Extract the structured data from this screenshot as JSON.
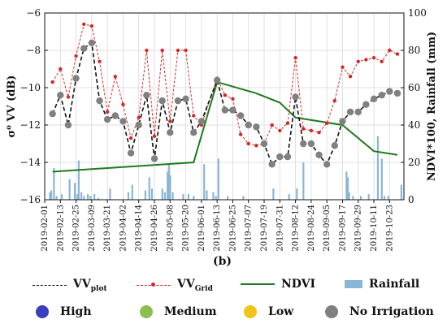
{
  "chart_data": {
    "type": "line",
    "panel_label": "(b)",
    "ylabel_left": "σ⁰ VV (dB)",
    "ylabel_right": "NDVI*100, Rainfall (mm)",
    "ylim_left": [
      -16,
      -6
    ],
    "yticks_left": [
      -16,
      -14,
      -12,
      -10,
      -8,
      -6
    ],
    "ylim_right": [
      0,
      100
    ],
    "yticks_right": [
      0,
      20,
      40,
      60,
      80,
      100
    ],
    "x_range": [
      "2019-02-01",
      "2019-11-03"
    ],
    "x_tick_labels": [
      "2019-02-01",
      "2019-02-13",
      "2019-02-25",
      "2019-03-09",
      "2019-03-21",
      "2019-04-02",
      "2019-04-14",
      "2019-04-26",
      "2019-05-08",
      "2019-05-20",
      "2019-06-01",
      "2019-06-13",
      "2019-06-25",
      "2019-07-07",
      "2019-07-19",
      "2019-07-31",
      "2019-08-12",
      "2019-08-24",
      "2019-09-05",
      "2019-09-17",
      "2019-09-29",
      "2019-10-11",
      "2019-10-23"
    ],
    "grid": true,
    "series": [
      {
        "name": "VV_plot",
        "axis": "left",
        "style": "dashed-black",
        "x": [
          "2019-02-07",
          "2019-02-13",
          "2019-02-19",
          "2019-02-25",
          "2019-03-03",
          "2019-03-09",
          "2019-03-15",
          "2019-03-21",
          "2019-03-27",
          "2019-04-02",
          "2019-04-08",
          "2019-04-14",
          "2019-04-20",
          "2019-04-26",
          "2019-05-02",
          "2019-05-08",
          "2019-05-14",
          "2019-05-20",
          "2019-05-26",
          "2019-06-01",
          "2019-06-13",
          "2019-06-19",
          "2019-06-25",
          "2019-07-01",
          "2019-07-07",
          "2019-07-13",
          "2019-07-19",
          "2019-07-25",
          "2019-07-31",
          "2019-08-06",
          "2019-08-12",
          "2019-08-18",
          "2019-08-24",
          "2019-08-30",
          "2019-09-05",
          "2019-09-11",
          "2019-09-17",
          "2019-09-23",
          "2019-09-29",
          "2019-10-05",
          "2019-10-11",
          "2019-10-17",
          "2019-10-23",
          "2019-10-29"
        ],
        "y": [
          -11.4,
          -10.4,
          -12.0,
          -9.5,
          -7.9,
          -7.6,
          -10.7,
          -11.7,
          -11.5,
          -11.8,
          -13.5,
          -12.0,
          -10.4,
          -13.8,
          -10.7,
          -12.4,
          -10.7,
          -10.6,
          -12.4,
          -11.8,
          -9.6,
          -11.2,
          -11.2,
          -11.5,
          -12.0,
          -12.1,
          -13.0,
          -14.1,
          -13.7,
          -13.7,
          -10.5,
          -13.0,
          -13.0,
          -13.6,
          -14.1,
          -13.1,
          -11.8,
          -11.3,
          -11.3,
          -10.9,
          -10.6,
          -10.4,
          -10.2,
          -10.3
        ]
      },
      {
        "name": "VV_Grid",
        "axis": "left",
        "style": "dashed-red-markers",
        "x": [
          "2019-02-07",
          "2019-02-13",
          "2019-02-19",
          "2019-02-25",
          "2019-03-03",
          "2019-03-09",
          "2019-03-15",
          "2019-03-21",
          "2019-03-27",
          "2019-04-02",
          "2019-04-08",
          "2019-04-14",
          "2019-04-20",
          "2019-04-26",
          "2019-05-02",
          "2019-05-08",
          "2019-05-14",
          "2019-05-20",
          "2019-05-26",
          "2019-06-01",
          "2019-06-13",
          "2019-06-19",
          "2019-06-25",
          "2019-07-01",
          "2019-07-07",
          "2019-07-13",
          "2019-07-19",
          "2019-07-25",
          "2019-07-31",
          "2019-08-06",
          "2019-08-12",
          "2019-08-18",
          "2019-08-24",
          "2019-08-30",
          "2019-09-05",
          "2019-09-11",
          "2019-09-17",
          "2019-09-23",
          "2019-09-29",
          "2019-10-05",
          "2019-10-11",
          "2019-10-17",
          "2019-10-23",
          "2019-10-29"
        ],
        "y": [
          -9.7,
          -9.0,
          -10.5,
          -8.3,
          -6.6,
          -6.7,
          -8.6,
          -11.3,
          -9.4,
          -10.9,
          -12.7,
          -11.6,
          -8.0,
          -12.6,
          -8.0,
          -11.8,
          -8.0,
          -8.0,
          -11.5,
          -12.0,
          -9.5,
          -10.4,
          -10.6,
          -12.5,
          -13.0,
          -13.1,
          -13.0,
          -12.0,
          -12.3,
          -11.9,
          -8.4,
          -12.2,
          -12.3,
          -12.4,
          -11.9,
          -10.7,
          -8.9,
          -9.4,
          -8.6,
          -8.5,
          -8.4,
          -8.6,
          -8.0,
          -8.2
        ]
      },
      {
        "name": "NDVI",
        "axis": "right",
        "style": "solid-green",
        "x": [
          "2019-02-07",
          "2019-05-26",
          "2019-06-13",
          "2019-07-13",
          "2019-07-31",
          "2019-08-12",
          "2019-09-17",
          "2019-10-11",
          "2019-10-29"
        ],
        "y": [
          15,
          20,
          63,
          57,
          52,
          44,
          40,
          26,
          24
        ]
      },
      {
        "name": "Rainfall",
        "axis": "right",
        "style": "bars-lightblue",
        "x": [
          "2019-02-05",
          "2019-02-06",
          "2019-02-08",
          "2019-02-10",
          "2019-02-14",
          "2019-02-20",
          "2019-02-24",
          "2019-02-26",
          "2019-02-27",
          "2019-03-01",
          "2019-03-03",
          "2019-03-06",
          "2019-03-08",
          "2019-03-11",
          "2019-03-14",
          "2019-03-23",
          "2019-04-06",
          "2019-04-09",
          "2019-04-19",
          "2019-04-22",
          "2019-04-24",
          "2019-05-02",
          "2019-05-04",
          "2019-05-06",
          "2019-05-07",
          "2019-05-08",
          "2019-05-10",
          "2019-05-18",
          "2019-05-22",
          "2019-05-26",
          "2019-06-03",
          "2019-06-05",
          "2019-06-10",
          "2019-06-12",
          "2019-06-14",
          "2019-06-21",
          "2019-07-03",
          "2019-07-26",
          "2019-08-07",
          "2019-08-13",
          "2019-08-18",
          "2019-09-20",
          "2019-09-21",
          "2019-09-22",
          "2019-09-25",
          "2019-10-01",
          "2019-10-07",
          "2019-10-14",
          "2019-10-17",
          "2019-10-19",
          "2019-10-22",
          "2019-11-01"
        ],
        "y": [
          4,
          5,
          17,
          2,
          3,
          11,
          9,
          3,
          21,
          4,
          2,
          3,
          2,
          3,
          1,
          6,
          4,
          8,
          5,
          12,
          6,
          6,
          4,
          15,
          19,
          13,
          4,
          3,
          3,
          2,
          19,
          5,
          4,
          2,
          22,
          2,
          2,
          6,
          3,
          6,
          20,
          15,
          12,
          4,
          2,
          2,
          3,
          34,
          22,
          2,
          2,
          8
        ]
      }
    ],
    "legend": {
      "placement": "bottom",
      "row1": [
        {
          "label": "VV",
          "sub": "plot"
        },
        {
          "label": "VV",
          "sub": "Grid"
        },
        {
          "label": "NDVI",
          "sub": ""
        },
        {
          "label": "Rainfall",
          "sub": ""
        }
      ],
      "row2": [
        {
          "label": "High",
          "color": "#3a3fbf"
        },
        {
          "label": "Medium",
          "color": "#8cbf4f"
        },
        {
          "label": "Low",
          "color": "#f0c419"
        },
        {
          "label": "No Irrigation",
          "color": "#808080"
        }
      ]
    },
    "colors": {
      "vv_plot": "#111111",
      "vv_grid": "#d62728",
      "ndvi": "#1f7a1f",
      "rainfall": "#8ab6d6",
      "marker_grey": "#808080"
    }
  }
}
